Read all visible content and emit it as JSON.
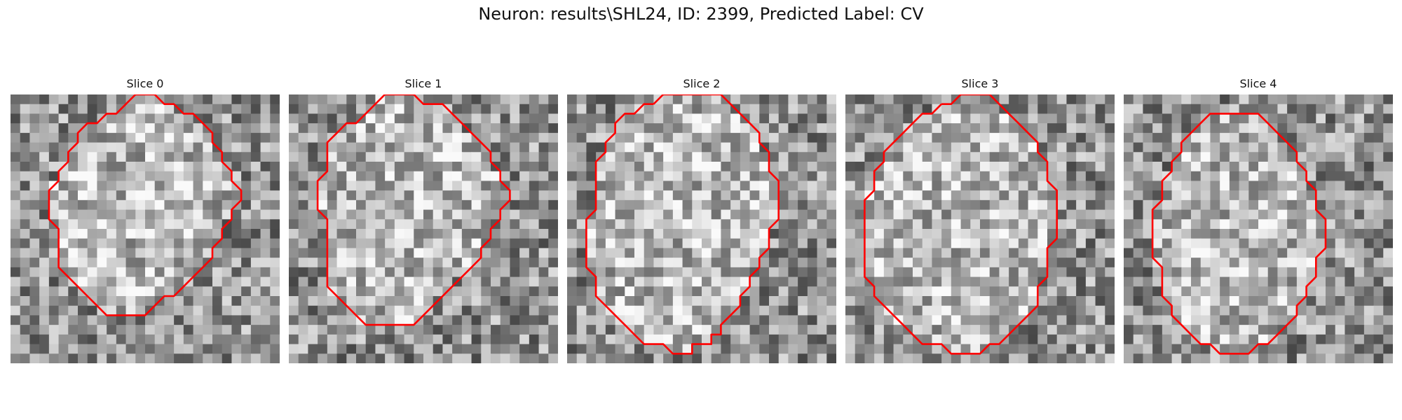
{
  "figure": {
    "title": "Neuron: results\\SHL24, ID: 2399, Predicted Label: CV",
    "contour_color": "#ff0000",
    "panels": [
      {
        "title": "Slice 0",
        "seed": 11,
        "contour": [
          [
            12,
            1
          ],
          [
            13,
            0
          ],
          [
            15,
            0
          ],
          [
            16,
            1
          ],
          [
            17,
            1
          ],
          [
            18,
            2
          ],
          [
            19,
            2
          ],
          [
            20,
            3
          ],
          [
            21,
            4
          ],
          [
            21,
            5
          ],
          [
            22,
            6
          ],
          [
            22,
            7
          ],
          [
            23,
            8
          ],
          [
            23,
            9
          ],
          [
            24,
            10
          ],
          [
            24,
            11
          ],
          [
            23,
            12
          ],
          [
            23,
            13
          ],
          [
            22,
            14
          ],
          [
            22,
            15
          ],
          [
            21,
            16
          ],
          [
            21,
            17
          ],
          [
            20,
            18
          ],
          [
            19,
            19
          ],
          [
            18,
            20
          ],
          [
            17,
            21
          ],
          [
            16,
            21
          ],
          [
            15,
            22
          ],
          [
            14,
            23
          ],
          [
            13,
            23
          ],
          [
            11,
            23
          ],
          [
            10,
            23
          ],
          [
            9,
            22
          ],
          [
            8,
            21
          ],
          [
            7,
            20
          ],
          [
            6,
            19
          ],
          [
            5,
            18
          ],
          [
            5,
            17
          ],
          [
            5,
            16
          ],
          [
            5,
            15
          ],
          [
            5,
            14
          ],
          [
            4,
            13
          ],
          [
            4,
            12
          ],
          [
            4,
            11
          ],
          [
            4,
            10
          ],
          [
            5,
            9
          ],
          [
            5,
            8
          ],
          [
            6,
            7
          ],
          [
            6,
            6
          ],
          [
            7,
            5
          ],
          [
            7,
            4
          ],
          [
            8,
            3
          ],
          [
            9,
            3
          ],
          [
            10,
            2
          ],
          [
            11,
            2
          ],
          [
            12,
            1
          ]
        ]
      },
      {
        "title": "Slice 1",
        "seed": 23,
        "contour": [
          [
            8,
            2
          ],
          [
            9,
            1
          ],
          [
            10,
            0
          ],
          [
            11,
            0
          ],
          [
            13,
            0
          ],
          [
            14,
            1
          ],
          [
            16,
            1
          ],
          [
            17,
            2
          ],
          [
            18,
            3
          ],
          [
            19,
            4
          ],
          [
            20,
            5
          ],
          [
            21,
            6
          ],
          [
            21,
            7
          ],
          [
            22,
            8
          ],
          [
            22,
            9
          ],
          [
            23,
            10
          ],
          [
            23,
            11
          ],
          [
            22,
            12
          ],
          [
            22,
            13
          ],
          [
            21,
            14
          ],
          [
            21,
            15
          ],
          [
            20,
            16
          ],
          [
            20,
            17
          ],
          [
            19,
            18
          ],
          [
            18,
            19
          ],
          [
            17,
            20
          ],
          [
            16,
            21
          ],
          [
            15,
            22
          ],
          [
            14,
            23
          ],
          [
            13,
            24
          ],
          [
            11,
            24
          ],
          [
            10,
            24
          ],
          [
            8,
            24
          ],
          [
            7,
            23
          ],
          [
            6,
            22
          ],
          [
            5,
            21
          ],
          [
            4,
            20
          ],
          [
            4,
            19
          ],
          [
            4,
            18
          ],
          [
            4,
            17
          ],
          [
            4,
            16
          ],
          [
            4,
            15
          ],
          [
            4,
            14
          ],
          [
            4,
            13
          ],
          [
            3,
            12
          ],
          [
            3,
            11
          ],
          [
            3,
            10
          ],
          [
            3,
            9
          ],
          [
            4,
            8
          ],
          [
            4,
            7
          ],
          [
            4,
            6
          ],
          [
            4,
            5
          ],
          [
            5,
            4
          ],
          [
            6,
            3
          ],
          [
            7,
            3
          ],
          [
            8,
            2
          ]
        ]
      },
      {
        "title": "Slice 2",
        "seed": 37,
        "contour": [
          [
            9,
            1
          ],
          [
            10,
            0
          ],
          [
            11,
            0
          ],
          [
            12,
            0
          ],
          [
            13,
            0
          ],
          [
            14,
            0
          ],
          [
            15,
            0
          ],
          [
            16,
            0
          ],
          [
            17,
            1
          ],
          [
            18,
            2
          ],
          [
            19,
            3
          ],
          [
            20,
            4
          ],
          [
            20,
            5
          ],
          [
            21,
            6
          ],
          [
            21,
            7
          ],
          [
            21,
            8
          ],
          [
            22,
            9
          ],
          [
            22,
            10
          ],
          [
            22,
            11
          ],
          [
            22,
            12
          ],
          [
            22,
            13
          ],
          [
            21,
            14
          ],
          [
            21,
            15
          ],
          [
            21,
            16
          ],
          [
            20,
            17
          ],
          [
            20,
            18
          ],
          [
            19,
            19
          ],
          [
            19,
            20
          ],
          [
            18,
            21
          ],
          [
            18,
            22
          ],
          [
            17,
            23
          ],
          [
            16,
            24
          ],
          [
            16,
            25
          ],
          [
            15,
            25
          ],
          [
            15,
            26
          ],
          [
            14,
            26
          ],
          [
            13,
            26
          ],
          [
            13,
            27
          ],
          [
            12,
            27
          ],
          [
            11,
            27
          ],
          [
            10,
            26
          ],
          [
            9,
            26
          ],
          [
            8,
            26
          ],
          [
            7,
            25
          ],
          [
            6,
            24
          ],
          [
            5,
            23
          ],
          [
            4,
            22
          ],
          [
            3,
            21
          ],
          [
            3,
            20
          ],
          [
            3,
            19
          ],
          [
            2,
            18
          ],
          [
            2,
            17
          ],
          [
            2,
            16
          ],
          [
            2,
            15
          ],
          [
            2,
            14
          ],
          [
            2,
            13
          ],
          [
            3,
            12
          ],
          [
            3,
            11
          ],
          [
            3,
            10
          ],
          [
            3,
            9
          ],
          [
            3,
            8
          ],
          [
            3,
            7
          ],
          [
            4,
            6
          ],
          [
            4,
            5
          ],
          [
            5,
            4
          ],
          [
            5,
            3
          ],
          [
            6,
            2
          ],
          [
            7,
            2
          ],
          [
            8,
            1
          ],
          [
            9,
            1
          ]
        ]
      },
      {
        "title": "Slice 3",
        "seed": 53,
        "contour": [
          [
            10,
            1
          ],
          [
            11,
            1
          ],
          [
            12,
            0
          ],
          [
            13,
            0
          ],
          [
            14,
            0
          ],
          [
            15,
            0
          ],
          [
            16,
            1
          ],
          [
            17,
            2
          ],
          [
            18,
            3
          ],
          [
            19,
            4
          ],
          [
            20,
            5
          ],
          [
            20,
            6
          ],
          [
            21,
            7
          ],
          [
            21,
            8
          ],
          [
            21,
            9
          ],
          [
            22,
            10
          ],
          [
            22,
            11
          ],
          [
            22,
            12
          ],
          [
            22,
            13
          ],
          [
            22,
            14
          ],
          [
            22,
            15
          ],
          [
            21,
            16
          ],
          [
            21,
            17
          ],
          [
            21,
            18
          ],
          [
            21,
            19
          ],
          [
            20,
            20
          ],
          [
            20,
            21
          ],
          [
            20,
            22
          ],
          [
            19,
            23
          ],
          [
            18,
            24
          ],
          [
            17,
            25
          ],
          [
            16,
            26
          ],
          [
            15,
            26
          ],
          [
            14,
            27
          ],
          [
            13,
            27
          ],
          [
            12,
            27
          ],
          [
            11,
            27
          ],
          [
            10,
            26
          ],
          [
            9,
            26
          ],
          [
            8,
            26
          ],
          [
            7,
            25
          ],
          [
            6,
            24
          ],
          [
            5,
            23
          ],
          [
            4,
            22
          ],
          [
            3,
            21
          ],
          [
            3,
            20
          ],
          [
            2,
            19
          ],
          [
            2,
            18
          ],
          [
            2,
            17
          ],
          [
            2,
            16
          ],
          [
            2,
            15
          ],
          [
            2,
            14
          ],
          [
            2,
            13
          ],
          [
            2,
            12
          ],
          [
            2,
            11
          ],
          [
            3,
            10
          ],
          [
            3,
            9
          ],
          [
            3,
            8
          ],
          [
            4,
            7
          ],
          [
            4,
            6
          ],
          [
            5,
            5
          ],
          [
            6,
            4
          ],
          [
            7,
            3
          ],
          [
            8,
            2
          ],
          [
            9,
            2
          ],
          [
            10,
            1
          ]
        ]
      },
      {
        "title": "Slice 4",
        "seed": 71,
        "contour": [
          [
            8,
            3
          ],
          [
            9,
            2
          ],
          [
            10,
            2
          ],
          [
            11,
            2
          ],
          [
            12,
            2
          ],
          [
            13,
            2
          ],
          [
            14,
            2
          ],
          [
            15,
            3
          ],
          [
            16,
            4
          ],
          [
            17,
            5
          ],
          [
            18,
            6
          ],
          [
            18,
            7
          ],
          [
            19,
            8
          ],
          [
            19,
            9
          ],
          [
            20,
            10
          ],
          [
            20,
            11
          ],
          [
            20,
            12
          ],
          [
            21,
            13
          ],
          [
            21,
            14
          ],
          [
            21,
            15
          ],
          [
            21,
            16
          ],
          [
            20,
            17
          ],
          [
            20,
            18
          ],
          [
            20,
            19
          ],
          [
            19,
            20
          ],
          [
            19,
            21
          ],
          [
            18,
            22
          ],
          [
            18,
            23
          ],
          [
            17,
            24
          ],
          [
            16,
            25
          ],
          [
            15,
            26
          ],
          [
            14,
            26
          ],
          [
            13,
            27
          ],
          [
            12,
            27
          ],
          [
            11,
            27
          ],
          [
            10,
            27
          ],
          [
            9,
            26
          ],
          [
            8,
            26
          ],
          [
            7,
            25
          ],
          [
            6,
            24
          ],
          [
            5,
            23
          ],
          [
            5,
            22
          ],
          [
            4,
            21
          ],
          [
            4,
            20
          ],
          [
            4,
            19
          ],
          [
            4,
            18
          ],
          [
            3,
            17
          ],
          [
            3,
            16
          ],
          [
            3,
            15
          ],
          [
            3,
            14
          ],
          [
            3,
            13
          ],
          [
            3,
            12
          ],
          [
            4,
            11
          ],
          [
            4,
            10
          ],
          [
            4,
            9
          ],
          [
            5,
            8
          ],
          [
            5,
            7
          ],
          [
            6,
            6
          ],
          [
            6,
            5
          ],
          [
            7,
            4
          ],
          [
            8,
            3
          ]
        ]
      }
    ]
  }
}
